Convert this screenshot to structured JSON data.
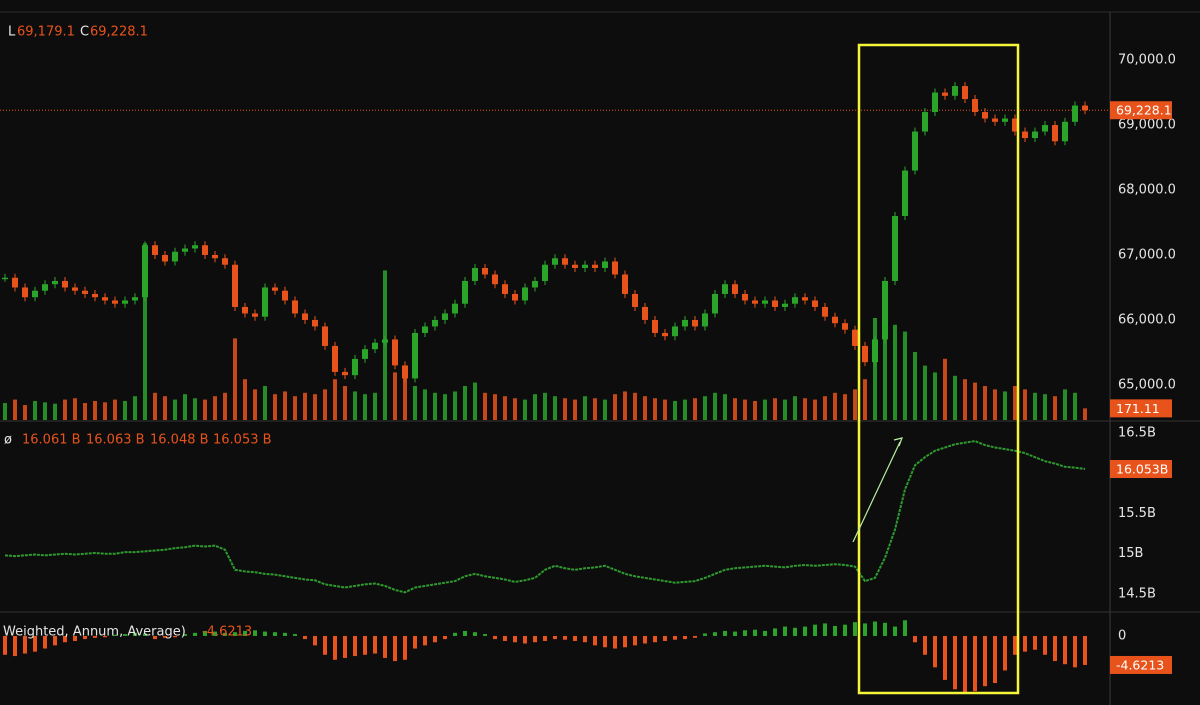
{
  "chart_data": {
    "type": "candlestick",
    "header": [
      {
        "key": "L",
        "value": "69,179.1"
      },
      {
        "key": "C",
        "value": "69,228.1"
      }
    ],
    "up_color": "#2aa52a",
    "down_color": "#e8531c",
    "price": {
      "values": [
        66650,
        66500,
        66350,
        66450,
        66550,
        66600,
        66500,
        66450,
        66400,
        66350,
        66300,
        66250,
        66300,
        66350,
        67150,
        67000,
        66900,
        67050,
        67100,
        67150,
        67000,
        66950,
        66850,
        66200,
        66100,
        66050,
        66500,
        66450,
        66300,
        66100,
        66000,
        65900,
        65600,
        65200,
        65150,
        65400,
        65550,
        65650,
        65700,
        65300,
        65100,
        65800,
        65900,
        66000,
        66100,
        66250,
        66600,
        66800,
        66700,
        66550,
        66400,
        66300,
        66500,
        66600,
        66850,
        66950,
        66850,
        66800,
        66850,
        66800,
        66900,
        66700,
        66400,
        66200,
        66000,
        65800,
        65750,
        65900,
        66000,
        65900,
        66100,
        66400,
        66550,
        66400,
        66300,
        66250,
        66300,
        66200,
        66250,
        66350,
        66300,
        66200,
        66050,
        65950,
        65850,
        65600,
        65350,
        65700,
        66600,
        67600,
        68300,
        68900,
        69200,
        69500,
        69450,
        69600,
        69400,
        69200,
        69100,
        69050,
        69100,
        68900,
        68800,
        68900,
        69000,
        68750,
        69050,
        69300,
        69228.1
      ],
      "ylim": [
        64460,
        70740
      ],
      "yticks": [
        {
          "value": 65000,
          "label": "65,000.0"
        },
        {
          "value": 66000,
          "label": "66,000.0"
        },
        {
          "value": 67000,
          "label": "67,000.0"
        },
        {
          "value": 68000,
          "label": "68,000.0"
        },
        {
          "value": 69000,
          "label": "69,000.0"
        },
        {
          "value": 70000,
          "label": "70,000.0"
        }
      ],
      "tag": {
        "value": 69228.1,
        "label": "69,228.1"
      }
    },
    "volume": {
      "values": [
        250,
        300,
        220,
        280,
        260,
        240,
        300,
        320,
        250,
        280,
        260,
        300,
        280,
        350,
        2600,
        400,
        350,
        300,
        380,
        320,
        300,
        350,
        400,
        1200,
        600,
        450,
        500,
        380,
        420,
        350,
        400,
        380,
        450,
        600,
        500,
        420,
        380,
        400,
        2200,
        700,
        800,
        500,
        450,
        400,
        380,
        420,
        500,
        550,
        400,
        380,
        350,
        320,
        300,
        380,
        400,
        350,
        320,
        300,
        350,
        320,
        300,
        380,
        420,
        400,
        350,
        320,
        300,
        280,
        300,
        320,
        350,
        400,
        380,
        320,
        300,
        280,
        300,
        320,
        300,
        350,
        320,
        300,
        350,
        400,
        380,
        450,
        600,
        1500,
        1700,
        1400,
        1300,
        1000,
        800,
        700,
        900,
        650,
        600,
        550,
        500,
        450,
        420,
        500,
        450,
        400,
        380,
        350,
        450,
        400,
        171.11
      ],
      "ylim": [
        0,
        6000
      ],
      "tag": {
        "value": 171.11,
        "label": "171.11"
      }
    },
    "indicator": {
      "symbol": "ø",
      "readings": [
        "16.061 B",
        "16.063 B",
        "16.048 B",
        "16.053 B"
      ],
      "color": "#2f9a2f",
      "values": [
        14.98,
        14.97,
        14.98,
        14.99,
        14.98,
        14.99,
        15.0,
        14.99,
        15.0,
        15.01,
        15.0,
        15.0,
        15.02,
        15.02,
        15.03,
        15.04,
        15.05,
        15.07,
        15.08,
        15.1,
        15.09,
        15.1,
        15.05,
        14.8,
        14.78,
        14.77,
        14.75,
        14.74,
        14.72,
        14.7,
        14.68,
        14.67,
        14.62,
        14.6,
        14.58,
        14.6,
        14.62,
        14.63,
        14.6,
        14.55,
        14.52,
        14.58,
        14.6,
        14.62,
        14.64,
        14.66,
        14.72,
        14.75,
        14.72,
        14.7,
        14.68,
        14.65,
        14.67,
        14.7,
        14.8,
        14.85,
        14.82,
        14.8,
        14.82,
        14.83,
        14.85,
        14.8,
        14.75,
        14.72,
        14.7,
        14.68,
        14.66,
        14.64,
        14.65,
        14.66,
        14.7,
        14.75,
        14.8,
        14.82,
        14.83,
        14.84,
        14.85,
        14.84,
        14.83,
        14.85,
        14.86,
        14.85,
        14.86,
        14.87,
        14.86,
        14.84,
        14.66,
        14.7,
        14.95,
        15.3,
        15.8,
        16.1,
        16.2,
        16.28,
        16.32,
        16.36,
        16.38,
        16.4,
        16.35,
        16.32,
        16.3,
        16.28,
        16.25,
        16.2,
        16.15,
        16.12,
        16.08,
        16.07,
        16.053
      ],
      "ylim": [
        14.276,
        16.637
      ],
      "yticks": [
        {
          "value": 14.5,
          "label": "14.5B"
        },
        {
          "value": 15,
          "label": "15B"
        },
        {
          "value": 15.5,
          "label": "15.5B"
        },
        {
          "value": 16.5,
          "label": "16.5B"
        }
      ],
      "tag": {
        "value": 16.053,
        "label": "16.053B"
      }
    },
    "oscillator": {
      "title": "Weighted, Annum, Average)",
      "reading": "-4.6213",
      "values": [
        -3,
        -3.2,
        -2.8,
        -2.5,
        -2,
        -1.5,
        -1,
        -0.8,
        -0.5,
        -0.3,
        -0.2,
        0.2,
        0.3,
        0.5,
        0.4,
        -0.5,
        -0.3,
        -0.2,
        0.3,
        0.5,
        0.8,
        0.7,
        0.5,
        0.6,
        0.8,
        0.9,
        0.7,
        0.6,
        0.5,
        0.3,
        -0.5,
        -1.5,
        -3,
        -3.8,
        -3.5,
        -3.2,
        -3,
        -2.8,
        -3.5,
        -4,
        -3.8,
        -2,
        -1.5,
        -1,
        -0.5,
        0.5,
        0.8,
        0.6,
        0.3,
        -0.5,
        -0.8,
        -1,
        -1.2,
        -1,
        -0.8,
        -0.5,
        -0.6,
        -0.8,
        -1,
        -1.5,
        -1.8,
        -2,
        -1.8,
        -1.5,
        -1.2,
        -1,
        -0.8,
        -0.6,
        -0.5,
        -0.3,
        0.4,
        0.6,
        0.8,
        0.7,
        0.9,
        1,
        0.8,
        1.2,
        1.5,
        1.3,
        1.5,
        1.8,
        2,
        1.6,
        1.8,
        2.2,
        2,
        2.3,
        2.1,
        1.5,
        2.5,
        -1,
        -3,
        -5,
        -7,
        -8.5,
        -9,
        -8.8,
        -8,
        -7.5,
        -5.5,
        -3,
        -2.5,
        -2.2,
        -3,
        -4,
        -4.5,
        -5,
        -4.6213
      ],
      "ylim": [
        -11,
        3.5
      ],
      "yticks": [
        0
      ],
      "tag": {
        "value": -4.6213,
        "label": "-4.6213"
      }
    }
  }
}
